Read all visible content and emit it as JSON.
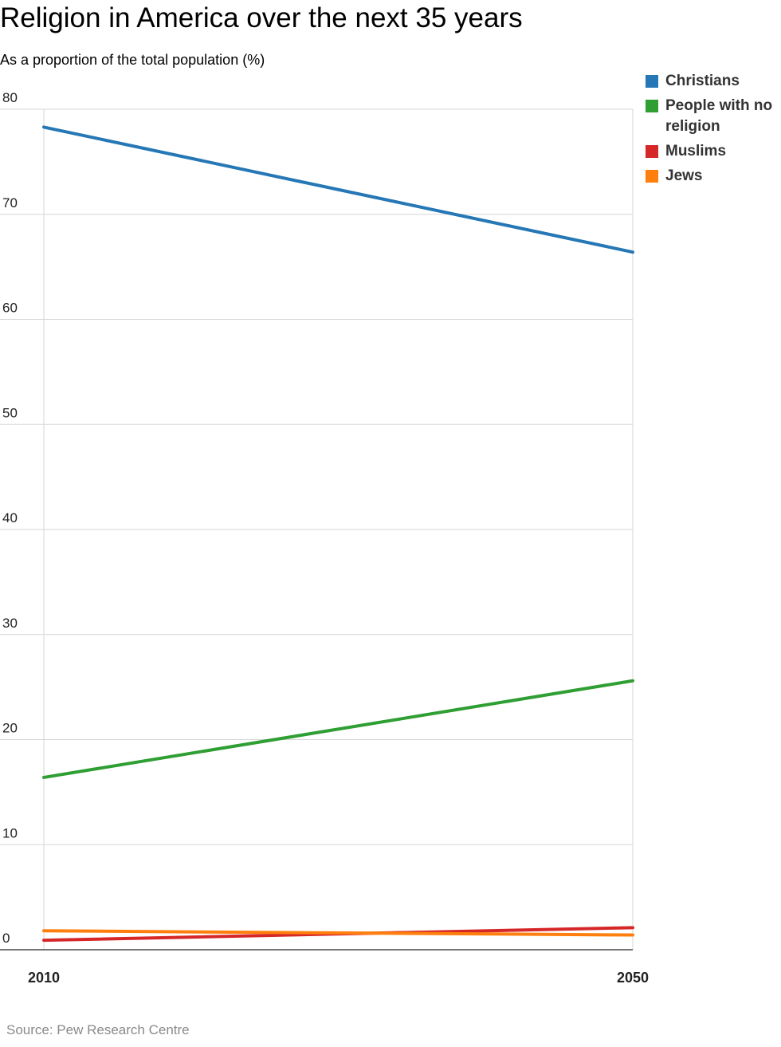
{
  "title": "Religion in America over the next 35 years",
  "subtitle": "As a proportion of the total population (%)",
  "source": "Source: Pew Research Centre",
  "chart_data": {
    "type": "line",
    "x": [
      "2010",
      "2050"
    ],
    "ylim": [
      0,
      80
    ],
    "yticks": [
      "0",
      "10",
      "20",
      "30",
      "40",
      "50",
      "60",
      "70",
      "80"
    ],
    "grid": true,
    "legend_position": "top-right",
    "series": [
      {
        "name": "Christians",
        "color": "#2577b5",
        "values": [
          78.3,
          66.4
        ]
      },
      {
        "name": "People with no religion",
        "color": "#2f9e33",
        "values": [
          16.4,
          25.6
        ]
      },
      {
        "name": "Muslims",
        "color": "#d62728",
        "values": [
          0.9,
          2.1
        ]
      },
      {
        "name": "Jews",
        "color": "#ff7f0e",
        "values": [
          1.8,
          1.4
        ]
      }
    ]
  }
}
